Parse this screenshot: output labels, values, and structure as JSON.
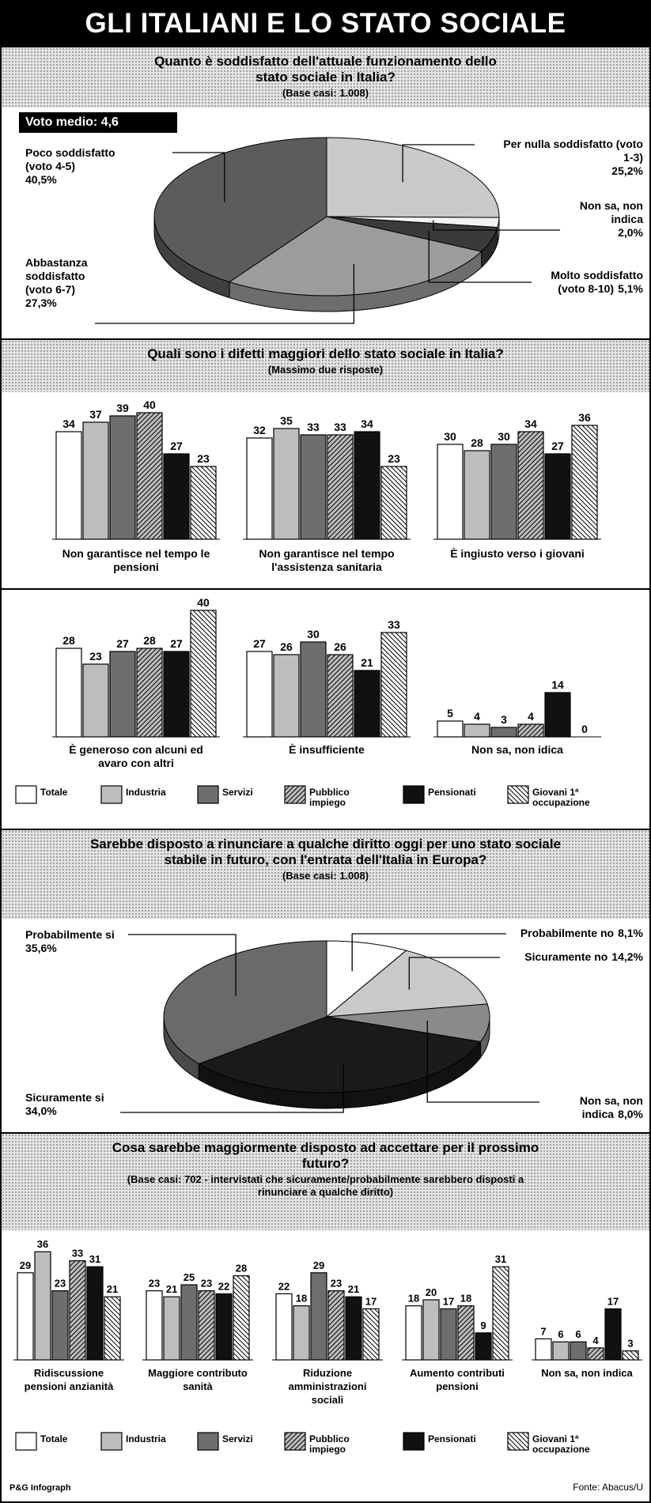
{
  "header": {
    "title": "GLI ITALIANI E LO STATO SOCIALE"
  },
  "chart_data": [
    {
      "type": "pie",
      "title": "Quanto è soddisfatto dell'attuale funzionamento dello stato sociale in Italia?",
      "subtitle": "(Base casi: 1.008)",
      "note": "Voto medio: 4,6",
      "categories": [
        "Per nulla soddisfatto (voto 1-3)",
        "Non sa, non indica",
        "Molto soddisfatto (voto 8-10)",
        "Abbastanza soddisfatto (voto 6-7)",
        "Poco soddisfatto (voto 4-5)"
      ],
      "values": [
        25.2,
        2.0,
        5.1,
        27.3,
        40.5
      ],
      "value_labels": [
        "25,2%",
        "2,0%",
        "5,1%",
        "27,3%",
        "40,5%"
      ],
      "colors": [
        "#c9c9c9",
        "#f2f2f2",
        "#3a3a3a",
        "#9c9c9c",
        "#5c5c5c"
      ]
    },
    {
      "type": "bar",
      "title": "Quali sono i difetti maggiori dello stato sociale in Italia?",
      "subtitle": "(Massimo due risposte)",
      "categories": [
        "Non garantisce nel tempo le pensioni",
        "Non garantisce nel tempo l'assistenza sanitaria",
        "È ingiusto verso i giovani",
        "È generoso con alcuni ed avaro con altri",
        "È insufficiente",
        "Non sa, non idica"
      ],
      "series": [
        {
          "name": "Totale",
          "color": "#ffffff",
          "values": [
            34,
            32,
            30,
            28,
            27,
            5
          ]
        },
        {
          "name": "Industria",
          "color": "#bdbdbd",
          "values": [
            37,
            35,
            28,
            23,
            26,
            4
          ]
        },
        {
          "name": "Servizi",
          "color": "#6e6e6e",
          "values": [
            39,
            33,
            30,
            27,
            30,
            3
          ]
        },
        {
          "name": "Pubblico impiego",
          "color": "#bdbdbd",
          "hatch": "forward",
          "values": [
            40,
            33,
            34,
            28,
            26,
            4
          ]
        },
        {
          "name": "Pensionati",
          "color": "#111111",
          "values": [
            27,
            34,
            27,
            27,
            21,
            14
          ]
        },
        {
          "name": "Giovani 1ª occupazione",
          "color": "#ffffff",
          "hatch": "backward",
          "values": [
            23,
            23,
            36,
            40,
            33,
            0
          ]
        }
      ]
    },
    {
      "type": "pie",
      "title": "Sarebbe disposto a rinunciare a qualche diritto oggi per uno stato sociale stabile in futuro, con l'entrata dell'Italia in Europa?",
      "subtitle": "(Base casi: 1.008)",
      "categories": [
        "Probabilmente no",
        "Sicuramente no",
        "Non sa, non indica",
        "Sicuramente si",
        "Probabilmente si"
      ],
      "values": [
        8.1,
        14.2,
        8.0,
        34.0,
        35.6
      ],
      "value_labels": [
        "8,1%",
        "14,2%",
        "8,0%",
        "34,0%",
        "35,6%"
      ],
      "colors": [
        "#ffffff",
        "#c9c9c9",
        "#8a8a8a",
        "#1a1a1a",
        "#6a6a6a"
      ]
    },
    {
      "type": "bar",
      "title": "Cosa sarebbe maggiormente disposto ad accettare per il prossimo futuro?",
      "subtitle": "(Base casi: 702 - intervistati che sicuramente/probabilmente sarebbero disposti a rinunciare a qualche diritto)",
      "categories": [
        "Ridiscussione pensioni anzianità",
        "Maggiore contributo sanità",
        "Riduzione amministrazioni sociali",
        "Aumento contributi pensioni",
        "Non sa, non indica"
      ],
      "series": [
        {
          "name": "Totale",
          "color": "#ffffff",
          "values": [
            29,
            23,
            22,
            18,
            7
          ]
        },
        {
          "name": "Industria",
          "color": "#bdbdbd",
          "values": [
            36,
            21,
            18,
            20,
            6
          ]
        },
        {
          "name": "Servizi",
          "color": "#6e6e6e",
          "values": [
            23,
            25,
            29,
            17,
            6
          ]
        },
        {
          "name": "Pubblico impiego",
          "color": "#bdbdbd",
          "hatch": "forward",
          "values": [
            33,
            23,
            23,
            18,
            4
          ]
        },
        {
          "name": "Pensionati",
          "color": "#111111",
          "values": [
            31,
            22,
            21,
            9,
            17
          ]
        },
        {
          "name": "Giovani 1ª occupazione",
          "color": "#ffffff",
          "hatch": "backward",
          "values": [
            21,
            28,
            17,
            31,
            3
          ]
        }
      ]
    }
  ],
  "footer": {
    "credit": "P&G Infograph",
    "source": "Fonte: Abacus/U"
  }
}
